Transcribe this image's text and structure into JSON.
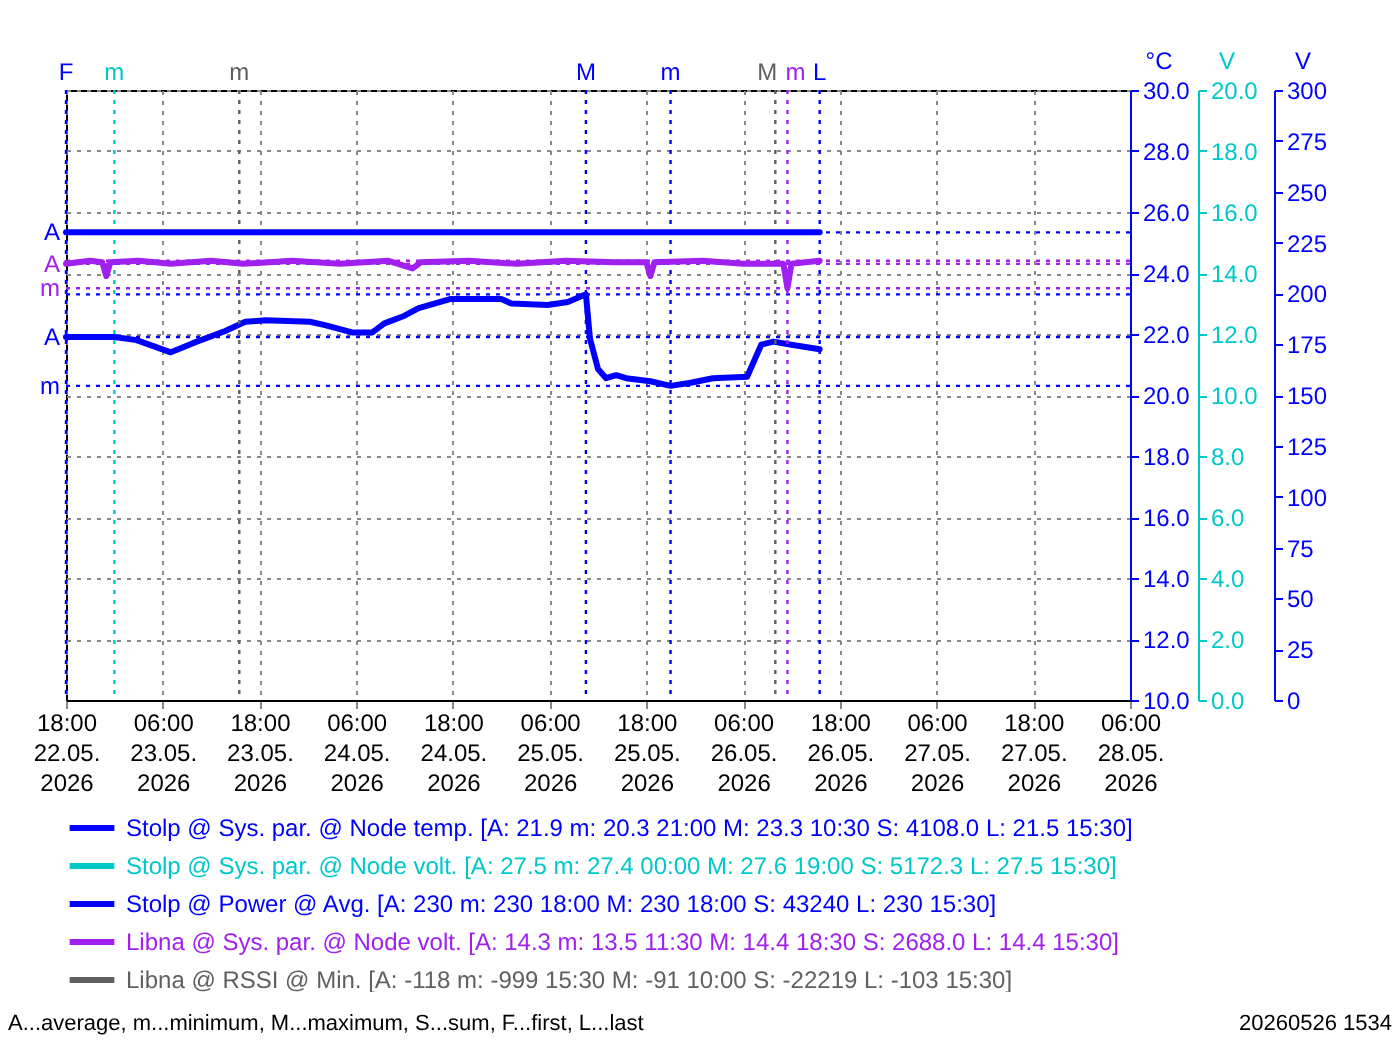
{
  "chart_data": {
    "type": "line",
    "ylabel": "°C",
    "y2label": "V",
    "y3label": "V",
    "xlim": [
      "2026-05-22T18:00",
      "2026-05-28T06:00"
    ],
    "xticks": [
      {
        "value": "2026-05-22T18:00",
        "label": "18:00\n22.05.\n2026"
      },
      {
        "value": "2026-05-23T06:00",
        "label": "06:00\n23.05.\n2026"
      },
      {
        "value": "2026-05-23T18:00",
        "label": "18:00\n23.05.\n2026"
      },
      {
        "value": "2026-05-24T06:00",
        "label": "06:00\n24.05.\n2026"
      },
      {
        "value": "2026-05-24T18:00",
        "label": "18:00\n24.05.\n2026"
      },
      {
        "value": "2026-05-25T06:00",
        "label": "06:00\n25.05.\n2026"
      },
      {
        "value": "2026-05-25T18:00",
        "label": "18:00\n25.05.\n2026"
      },
      {
        "value": "2026-05-26T06:00",
        "label": "06:00\n26.05.\n2026"
      },
      {
        "value": "2026-05-26T18:00",
        "label": "18:00\n26.05.\n2026"
      },
      {
        "value": "2026-05-27T06:00",
        "label": "06:00\n27.05.\n2026"
      },
      {
        "value": "2026-05-27T18:00",
        "label": "18:00\n27.05.\n2026"
      },
      {
        "value": "2026-05-28T06:00",
        "label": "06:00\n28.05.\n2026"
      }
    ],
    "ylim": [
      10,
      30
    ],
    "yticks": [
      {
        "value": 10,
        "label": "10.0"
      },
      {
        "value": 12,
        "label": "12.0"
      },
      {
        "value": 14,
        "label": "14.0"
      },
      {
        "value": 16,
        "label": "16.0"
      },
      {
        "value": 18,
        "label": "18.0"
      },
      {
        "value": 20,
        "label": "20.0"
      },
      {
        "value": 22,
        "label": "22.0"
      },
      {
        "value": 24,
        "label": "24.0"
      },
      {
        "value": 26,
        "label": "26.0"
      },
      {
        "value": 28,
        "label": "28.0"
      },
      {
        "value": 30,
        "label": "30.0"
      }
    ],
    "y2lim": [
      0,
      20
    ],
    "y2ticks": [
      {
        "value": 0,
        "label": "0.0"
      },
      {
        "value": 2,
        "label": "2.0"
      },
      {
        "value": 4,
        "label": "4.0"
      },
      {
        "value": 6,
        "label": "6.0"
      },
      {
        "value": 8,
        "label": "8.0"
      },
      {
        "value": 10,
        "label": "10.0"
      },
      {
        "value": 12,
        "label": "12.0"
      },
      {
        "value": 14,
        "label": "14.0"
      },
      {
        "value": 16,
        "label": "16.0"
      },
      {
        "value": 18,
        "label": "18.0"
      },
      {
        "value": 20,
        "label": "20.0"
      }
    ],
    "y3lim": [
      0,
      300
    ],
    "y3ticks": [
      0,
      25,
      50,
      75,
      100,
      125,
      150,
      175,
      200,
      225,
      250,
      275,
      300
    ],
    "grid": true,
    "legend": "bottom",
    "line_style": "solid",
    "marker": "none",
    "series": [
      {
        "name": "Stolp @ Sys. par. @ Node temp. [A: 21.9 m: 20.3 21:00 M: 23.3 10:30 S: 4108.0 L: 21.5 15:30]",
        "color": "#0000ff",
        "axis": "y",
        "x": [
          "2026-05-22T18:00",
          "2026-05-23T00:00",
          "2026-05-23T02:45",
          "2026-05-23T07:00",
          "2026-05-23T09:45",
          "2026-05-23T13:45",
          "2026-05-23T16:15",
          "2026-05-23T18:45",
          "2026-05-24T00:15",
          "2026-05-24T02:00",
          "2026-05-24T05:30",
          "2026-05-24T08:00",
          "2026-05-24T09:30",
          "2026-05-24T12:00",
          "2026-05-24T13:45",
          "2026-05-24T17:45",
          "2026-05-25T00:00",
          "2026-05-25T01:15",
          "2026-05-25T05:45",
          "2026-05-25T08:15",
          "2026-05-25T10:30",
          "2026-05-25T11:00",
          "2026-05-25T12:00",
          "2026-05-25T13:00",
          "2026-05-25T14:15",
          "2026-05-25T15:30",
          "2026-05-25T18:30",
          "2026-05-25T21:00",
          "2026-05-25T23:30",
          "2026-05-26T02:15",
          "2026-05-26T06:30",
          "2026-05-26T08:15",
          "2026-05-26T09:45",
          "2026-05-26T12:00",
          "2026-05-26T15:30"
        ],
        "values": [
          21.9,
          21.9,
          21.8,
          21.4,
          21.7,
          22.1,
          22.4,
          22.45,
          22.4,
          22.3,
          22.05,
          22.05,
          22.35,
          22.6,
          22.85,
          23.15,
          23.15,
          23.0,
          22.95,
          23.05,
          23.3,
          21.85,
          20.85,
          20.55,
          20.65,
          20.55,
          20.45,
          20.3,
          20.4,
          20.55,
          20.6,
          21.65,
          21.75,
          21.65,
          21.5
        ]
      },
      {
        "name": "Stolp @ Sys. par. @ Node volt. [A: 27.5 m: 27.4 00:00 M: 27.6 19:00 S: 5172.3 L: 27.5 15:30]",
        "color": "#00c8c8",
        "axis": "y2"
      },
      {
        "name": "Stolp @ Power @ Avg. [A: 230 m: 230 18:00 M: 230 18:00 S: 43240 L: 230 15:30]",
        "color": "#0000ff",
        "axis": "y3",
        "x": [
          "2026-05-22T18:00",
          "2026-05-26T15:30"
        ],
        "values": [
          230,
          230
        ]
      },
      {
        "name": "Libna @ Sys. par. @ Node volt. [A: 14.3 m: 13.5 11:30 M: 14.4 18:30 S: 2688.0 L: 14.4 15:30]",
        "color": "#a020f0",
        "axis": "y2",
        "x": [
          "2026-05-22T18:00",
          "2026-05-22T21:00",
          "2026-05-22T22:30",
          "2026-05-22T23:00",
          "2026-05-22T23:30",
          "2026-05-23T03:00",
          "2026-05-23T07:00",
          "2026-05-23T12:00",
          "2026-05-23T16:00",
          "2026-05-23T22:00",
          "2026-05-24T04:00",
          "2026-05-24T10:00",
          "2026-05-24T13:00",
          "2026-05-24T14:00",
          "2026-05-24T20:00",
          "2026-05-25T02:00",
          "2026-05-25T08:00",
          "2026-05-25T14:00",
          "2026-05-25T18:00",
          "2026-05-25T18:30",
          "2026-05-25T19:00",
          "2026-05-26T01:00",
          "2026-05-26T06:00",
          "2026-05-26T11:00",
          "2026-05-26T11:30",
          "2026-05-26T12:00",
          "2026-05-26T15:30"
        ],
        "values": [
          14.3,
          14.4,
          14.35,
          13.9,
          14.35,
          14.4,
          14.3,
          14.4,
          14.3,
          14.4,
          14.3,
          14.4,
          14.15,
          14.35,
          14.4,
          14.3,
          14.4,
          14.35,
          14.35,
          13.9,
          14.35,
          14.4,
          14.3,
          14.3,
          13.5,
          14.3,
          14.4
        ]
      },
      {
        "name": "Libna @ RSSI @ Min. [A: -118 m: -999 15:30 M: -91 10:00 S: -22219 L: -103 15:30]",
        "color": "#606060"
      }
    ],
    "ref_lines": [
      {
        "axis": "x",
        "value": "2026-05-22T18:00",
        "label": "F",
        "color": "#0000ff",
        "line_style": "dotted"
      },
      {
        "axis": "x",
        "value": "2026-05-23T00:00",
        "label": "m",
        "color": "#00c8c8",
        "line_style": "dotted"
      },
      {
        "axis": "x",
        "value": "2026-05-23T15:30",
        "label": "m",
        "color": "#606060",
        "line_style": "dotted"
      },
      {
        "axis": "x",
        "value": "2026-05-25T10:30",
        "label": "M",
        "color": "#0000ff",
        "line_style": "dotted"
      },
      {
        "axis": "x",
        "value": "2026-05-25T21:00",
        "label": "m",
        "color": "#0000ff",
        "line_style": "dotted"
      },
      {
        "axis": "x",
        "value": "2026-05-26T10:00",
        "label": "M",
        "color": "#606060",
        "line_style": "dotted"
      },
      {
        "axis": "x",
        "value": "2026-05-26T11:30",
        "label": "m",
        "color": "#a020f0",
        "line_style": "dotted"
      },
      {
        "axis": "x",
        "value": "2026-05-26T15:30",
        "label": "L",
        "color": "#0000ff",
        "line_style": "dotted"
      },
      {
        "axis": "y",
        "value": 21.9,
        "label": "A",
        "color": "#0000ff",
        "line_style": "dotted"
      },
      {
        "axis": "y",
        "value": 20.3,
        "label": "m",
        "color": "#0000ff",
        "line_style": "dotted"
      },
      {
        "axis": "y",
        "value": 23.3,
        "label": null,
        "color": "#0000ff",
        "line_style": "dotted"
      },
      {
        "axis": "y2",
        "value": 14.3,
        "label": "A",
        "color": "#a020f0",
        "line_style": "dotted"
      },
      {
        "axis": "y2",
        "value": 13.5,
        "label": "m",
        "color": "#a020f0",
        "line_style": "dotted"
      },
      {
        "axis": "y2",
        "value": 14.4,
        "label": null,
        "color": "#a020f0",
        "line_style": "dotted"
      },
      {
        "axis": "y3",
        "value": 230,
        "label": "A",
        "color": "#0000ff",
        "line_style": "dotted"
      }
    ],
    "annotations": [
      "A...average, m...minimum, M...maximum, S...sum, F...first, L...last",
      "20260526 1534"
    ]
  }
}
